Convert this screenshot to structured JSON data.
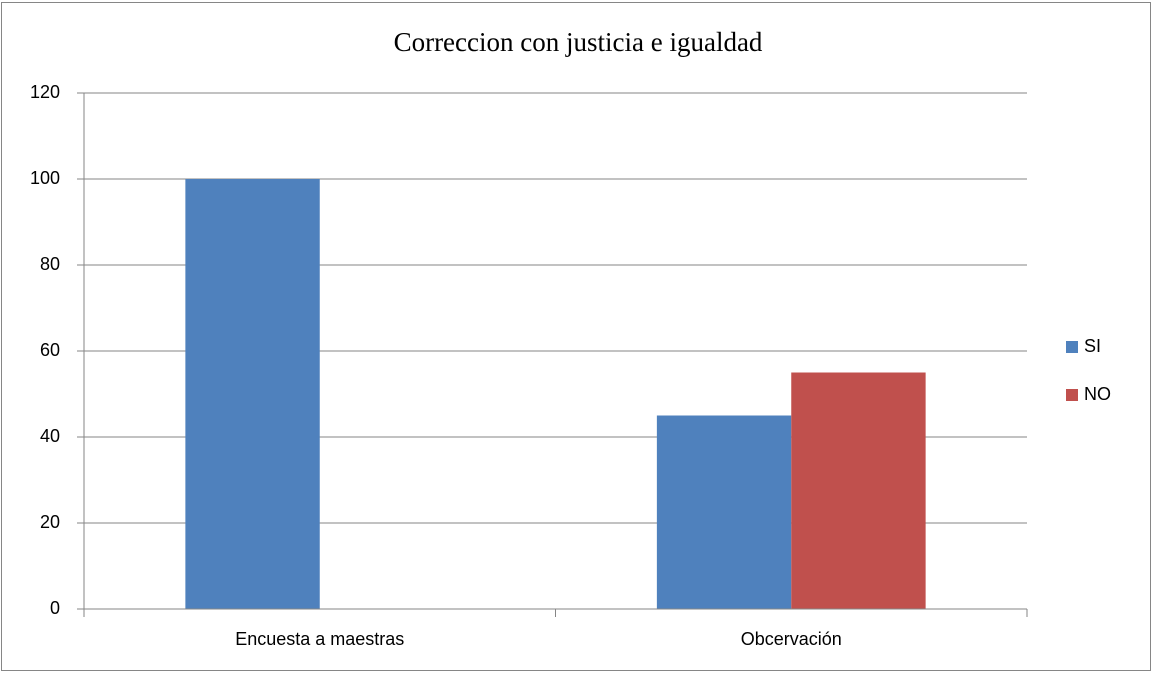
{
  "chart_data": {
    "type": "bar",
    "title": "Correccion con justicia e igualdad",
    "categories": [
      "Encuesta a maestras",
      "Obcervación"
    ],
    "series": [
      {
        "name": "SI",
        "color": "#4f81bd",
        "values": [
          100,
          45
        ]
      },
      {
        "name": "NO",
        "color": "#c0504d",
        "values": [
          0,
          55
        ]
      }
    ],
    "ylim": [
      0,
      120
    ],
    "yticks": [
      0,
      20,
      40,
      60,
      80,
      100,
      120
    ],
    "grid": true,
    "legend": "right"
  }
}
